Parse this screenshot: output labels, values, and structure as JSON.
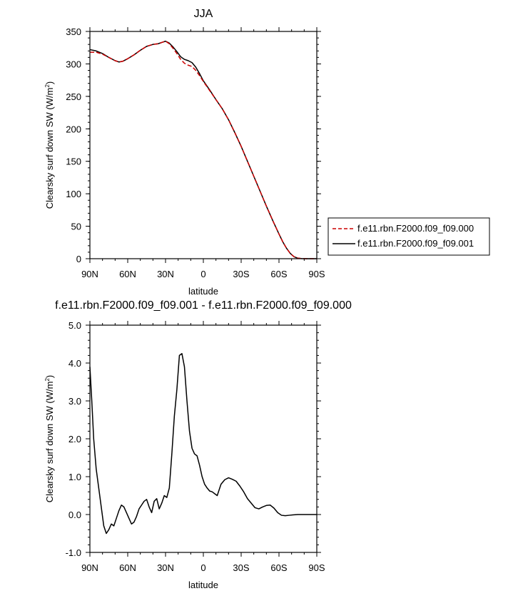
{
  "chart_data": [
    {
      "type": "line",
      "title": "JJA",
      "xlabel": "latitude",
      "ylabel": "Clearsky surf down SW (W/m",
      "ylabel_sup": "2",
      "ylabel_close": ")",
      "xlim": [
        90,
        -90
      ],
      "ylim": [
        0,
        350
      ],
      "xticks": [
        90,
        60,
        30,
        0,
        -30,
        -60,
        -90
      ],
      "xtick_labels": [
        "90N",
        "60N",
        "30N",
        "0",
        "30S",
        "60S",
        "90S"
      ],
      "yticks": [
        0,
        50,
        100,
        150,
        200,
        250,
        300,
        350
      ],
      "ytick_labels": [
        "0",
        "50",
        "100",
        "150",
        "200",
        "250",
        "300",
        "350"
      ],
      "legend_position": "right",
      "series": [
        {
          "name": "f.e11.rbn.F2000.f09_f09.000",
          "color": "#cc0000",
          "dash": true,
          "x": [
            90,
            85,
            80,
            75,
            70,
            67,
            64,
            60,
            55,
            50,
            45,
            40,
            36,
            33,
            30,
            27,
            24,
            21,
            18,
            15,
            12,
            9,
            6,
            3,
            0,
            -5,
            -10,
            -15,
            -20,
            -25,
            -30,
            -35,
            -40,
            -45,
            -50,
            -55,
            -60,
            -63,
            -66,
            -69,
            -72,
            -75,
            -78,
            -81,
            -85,
            -90
          ],
          "y": [
            318,
            318,
            315,
            310,
            305,
            303,
            304,
            308,
            314,
            321,
            327,
            330,
            331,
            333,
            335,
            331,
            324,
            316,
            307,
            301,
            298,
            296,
            290,
            282,
            273,
            259,
            245,
            231,
            214,
            194,
            173,
            150,
            127,
            104,
            81,
            59,
            38,
            26,
            16,
            8,
            3,
            0.8,
            0.2,
            0,
            0,
            0
          ]
        },
        {
          "name": "f.e11.rbn.F2000.f09_f09.001",
          "color": "#000000",
          "dash": false,
          "x": [
            90,
            85,
            80,
            75,
            70,
            67,
            64,
            60,
            55,
            50,
            45,
            40,
            36,
            33,
            30,
            27,
            24,
            21,
            18,
            15,
            12,
            9,
            6,
            3,
            0,
            -5,
            -10,
            -15,
            -20,
            -25,
            -30,
            -35,
            -40,
            -45,
            -50,
            -55,
            -60,
            -63,
            -66,
            -69,
            -72,
            -75,
            -78,
            -81,
            -85,
            -90
          ],
          "y": [
            322,
            320,
            316,
            310,
            305,
            303,
            304,
            308,
            314,
            321,
            327,
            330,
            331,
            333,
            335,
            332,
            326,
            319,
            311,
            307,
            305,
            302,
            295,
            285,
            274,
            260,
            245,
            231,
            214,
            194,
            173,
            150,
            127,
            104,
            81,
            59,
            38,
            26,
            16,
            8,
            3,
            0.8,
            0.2,
            0,
            0,
            0
          ]
        }
      ]
    },
    {
      "type": "line",
      "title": "f.e11.rbn.F2000.f09_f09.001 - f.e11.rbn.F2000.f09_f09.000",
      "xlabel": "latitude",
      "ylabel": "Clearsky surf down SW (W/m",
      "ylabel_sup": "2",
      "ylabel_close": ")",
      "xlim": [
        90,
        -90
      ],
      "ylim": [
        -1.0,
        5.0
      ],
      "xticks": [
        90,
        60,
        30,
        0,
        -30,
        -60,
        -90
      ],
      "xtick_labels": [
        "90N",
        "60N",
        "30N",
        "0",
        "30S",
        "60S",
        "90S"
      ],
      "yticks": [
        -1.0,
        0.0,
        1.0,
        2.0,
        3.0,
        4.0,
        5.0
      ],
      "ytick_labels": [
        "-1.0",
        "0.0",
        "1.0",
        "2.0",
        "3.0",
        "4.0",
        "5.0"
      ],
      "series": [
        {
          "color": "#000000",
          "x": [
            90,
            88.5,
            87,
            85,
            83,
            81,
            79,
            77,
            75,
            73,
            71,
            69,
            67,
            65,
            63,
            61,
            59,
            57,
            55,
            53,
            51,
            49,
            47,
            45,
            43,
            41,
            39,
            37,
            35,
            33,
            31,
            29,
            27,
            25,
            23,
            21,
            19,
            17,
            15,
            13,
            11,
            9,
            7,
            5,
            3,
            1,
            -1,
            -3,
            -5,
            -7,
            -9,
            -11,
            -14,
            -17,
            -20,
            -23,
            -26,
            -29,
            -32,
            -35,
            -38,
            -41,
            -44,
            -47,
            -50,
            -53,
            -56,
            -59,
            -62,
            -65,
            -68,
            -71,
            -75,
            -80,
            -85,
            -90
          ],
          "y": [
            3.9,
            3.0,
            2.0,
            1.2,
            0.7,
            0.2,
            -0.3,
            -0.5,
            -0.4,
            -0.25,
            -0.3,
            -0.1,
            0.1,
            0.25,
            0.2,
            0.05,
            -0.1,
            -0.25,
            -0.2,
            -0.05,
            0.15,
            0.25,
            0.35,
            0.4,
            0.2,
            0.05,
            0.35,
            0.42,
            0.15,
            0.3,
            0.5,
            0.45,
            0.7,
            1.6,
            2.6,
            3.3,
            4.2,
            4.25,
            3.9,
            3.0,
            2.2,
            1.75,
            1.6,
            1.55,
            1.3,
            1.0,
            0.8,
            0.7,
            0.62,
            0.6,
            0.55,
            0.5,
            0.8,
            0.92,
            0.97,
            0.93,
            0.88,
            0.75,
            0.6,
            0.42,
            0.3,
            0.18,
            0.15,
            0.2,
            0.24,
            0.25,
            0.17,
            0.05,
            -0.02,
            -0.03,
            -0.02,
            -0.01,
            0,
            0,
            0,
            0
          ]
        }
      ]
    }
  ]
}
